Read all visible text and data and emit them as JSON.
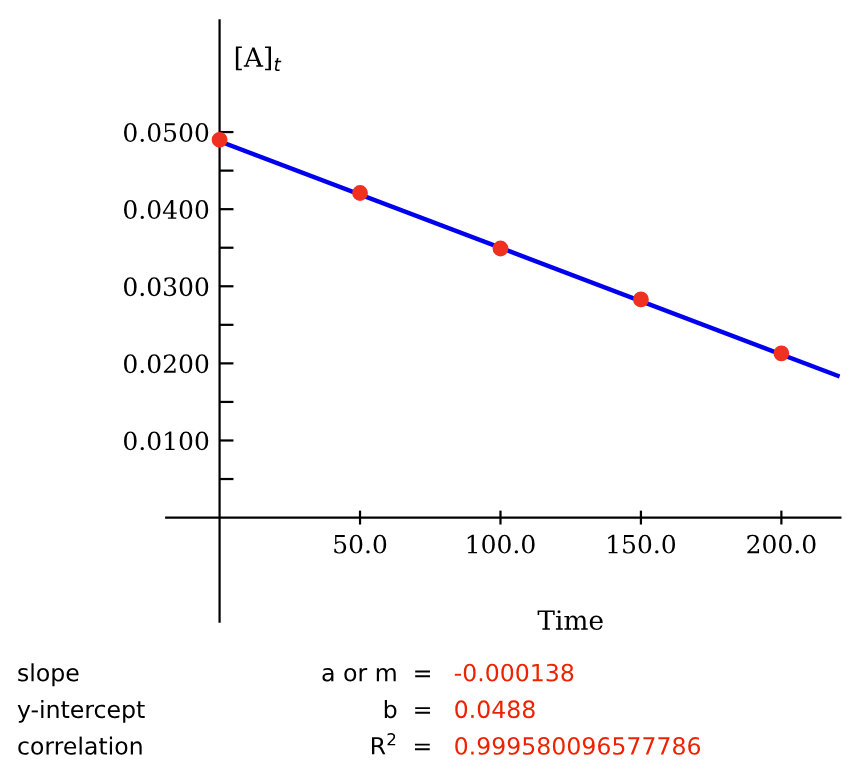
{
  "chart_data": {
    "type": "scatter",
    "xlabel": "Time",
    "ylabel": "[A]$_{t}$",
    "series": [
      {
        "type": "line",
        "color": "#0000ee",
        "x": [
          0,
          220
        ],
        "values": [
          0.0488,
          0.0184
        ],
        "marker": "none"
      },
      {
        "color": "#f03020",
        "x": [
          0,
          50,
          100,
          150,
          200
        ],
        "values": [
          0.049,
          0.0421,
          0.0349,
          0.0283,
          0.0213
        ],
        "marker": "circle"
      }
    ],
    "xlim": [
      -19,
      221
    ],
    "ylim": [
      -0.0135,
      0.0645
    ],
    "xticks": [
      {
        "value": 50,
        "label": "50.0"
      },
      {
        "value": 100,
        "label": "100.0"
      },
      {
        "value": 150,
        "label": "150.0"
      },
      {
        "value": 200,
        "label": "200.0"
      }
    ],
    "yticks": [
      {
        "value": 0.005,
        "label": null
      },
      {
        "value": 0.01,
        "label": "0.0100"
      },
      {
        "value": 0.015,
        "label": null
      },
      {
        "value": 0.02,
        "label": "0.0200"
      },
      {
        "value": 0.025,
        "label": null
      },
      {
        "value": 0.03,
        "label": "0.0300"
      },
      {
        "value": 0.035,
        "label": null
      },
      {
        "value": 0.04,
        "label": "0.0400"
      },
      {
        "value": 0.045,
        "label": null
      },
      {
        "value": 0.05,
        "label": "0.0500"
      }
    ],
    "grid": false,
    "legend": false,
    "annotations": [
      "slope",
      "a or m  =",
      "-0.000138",
      "y-intercept",
      "b  =",
      "0.0488",
      "correlation",
      "R$^{2}$  =",
      "0.999580096577786"
    ]
  }
}
